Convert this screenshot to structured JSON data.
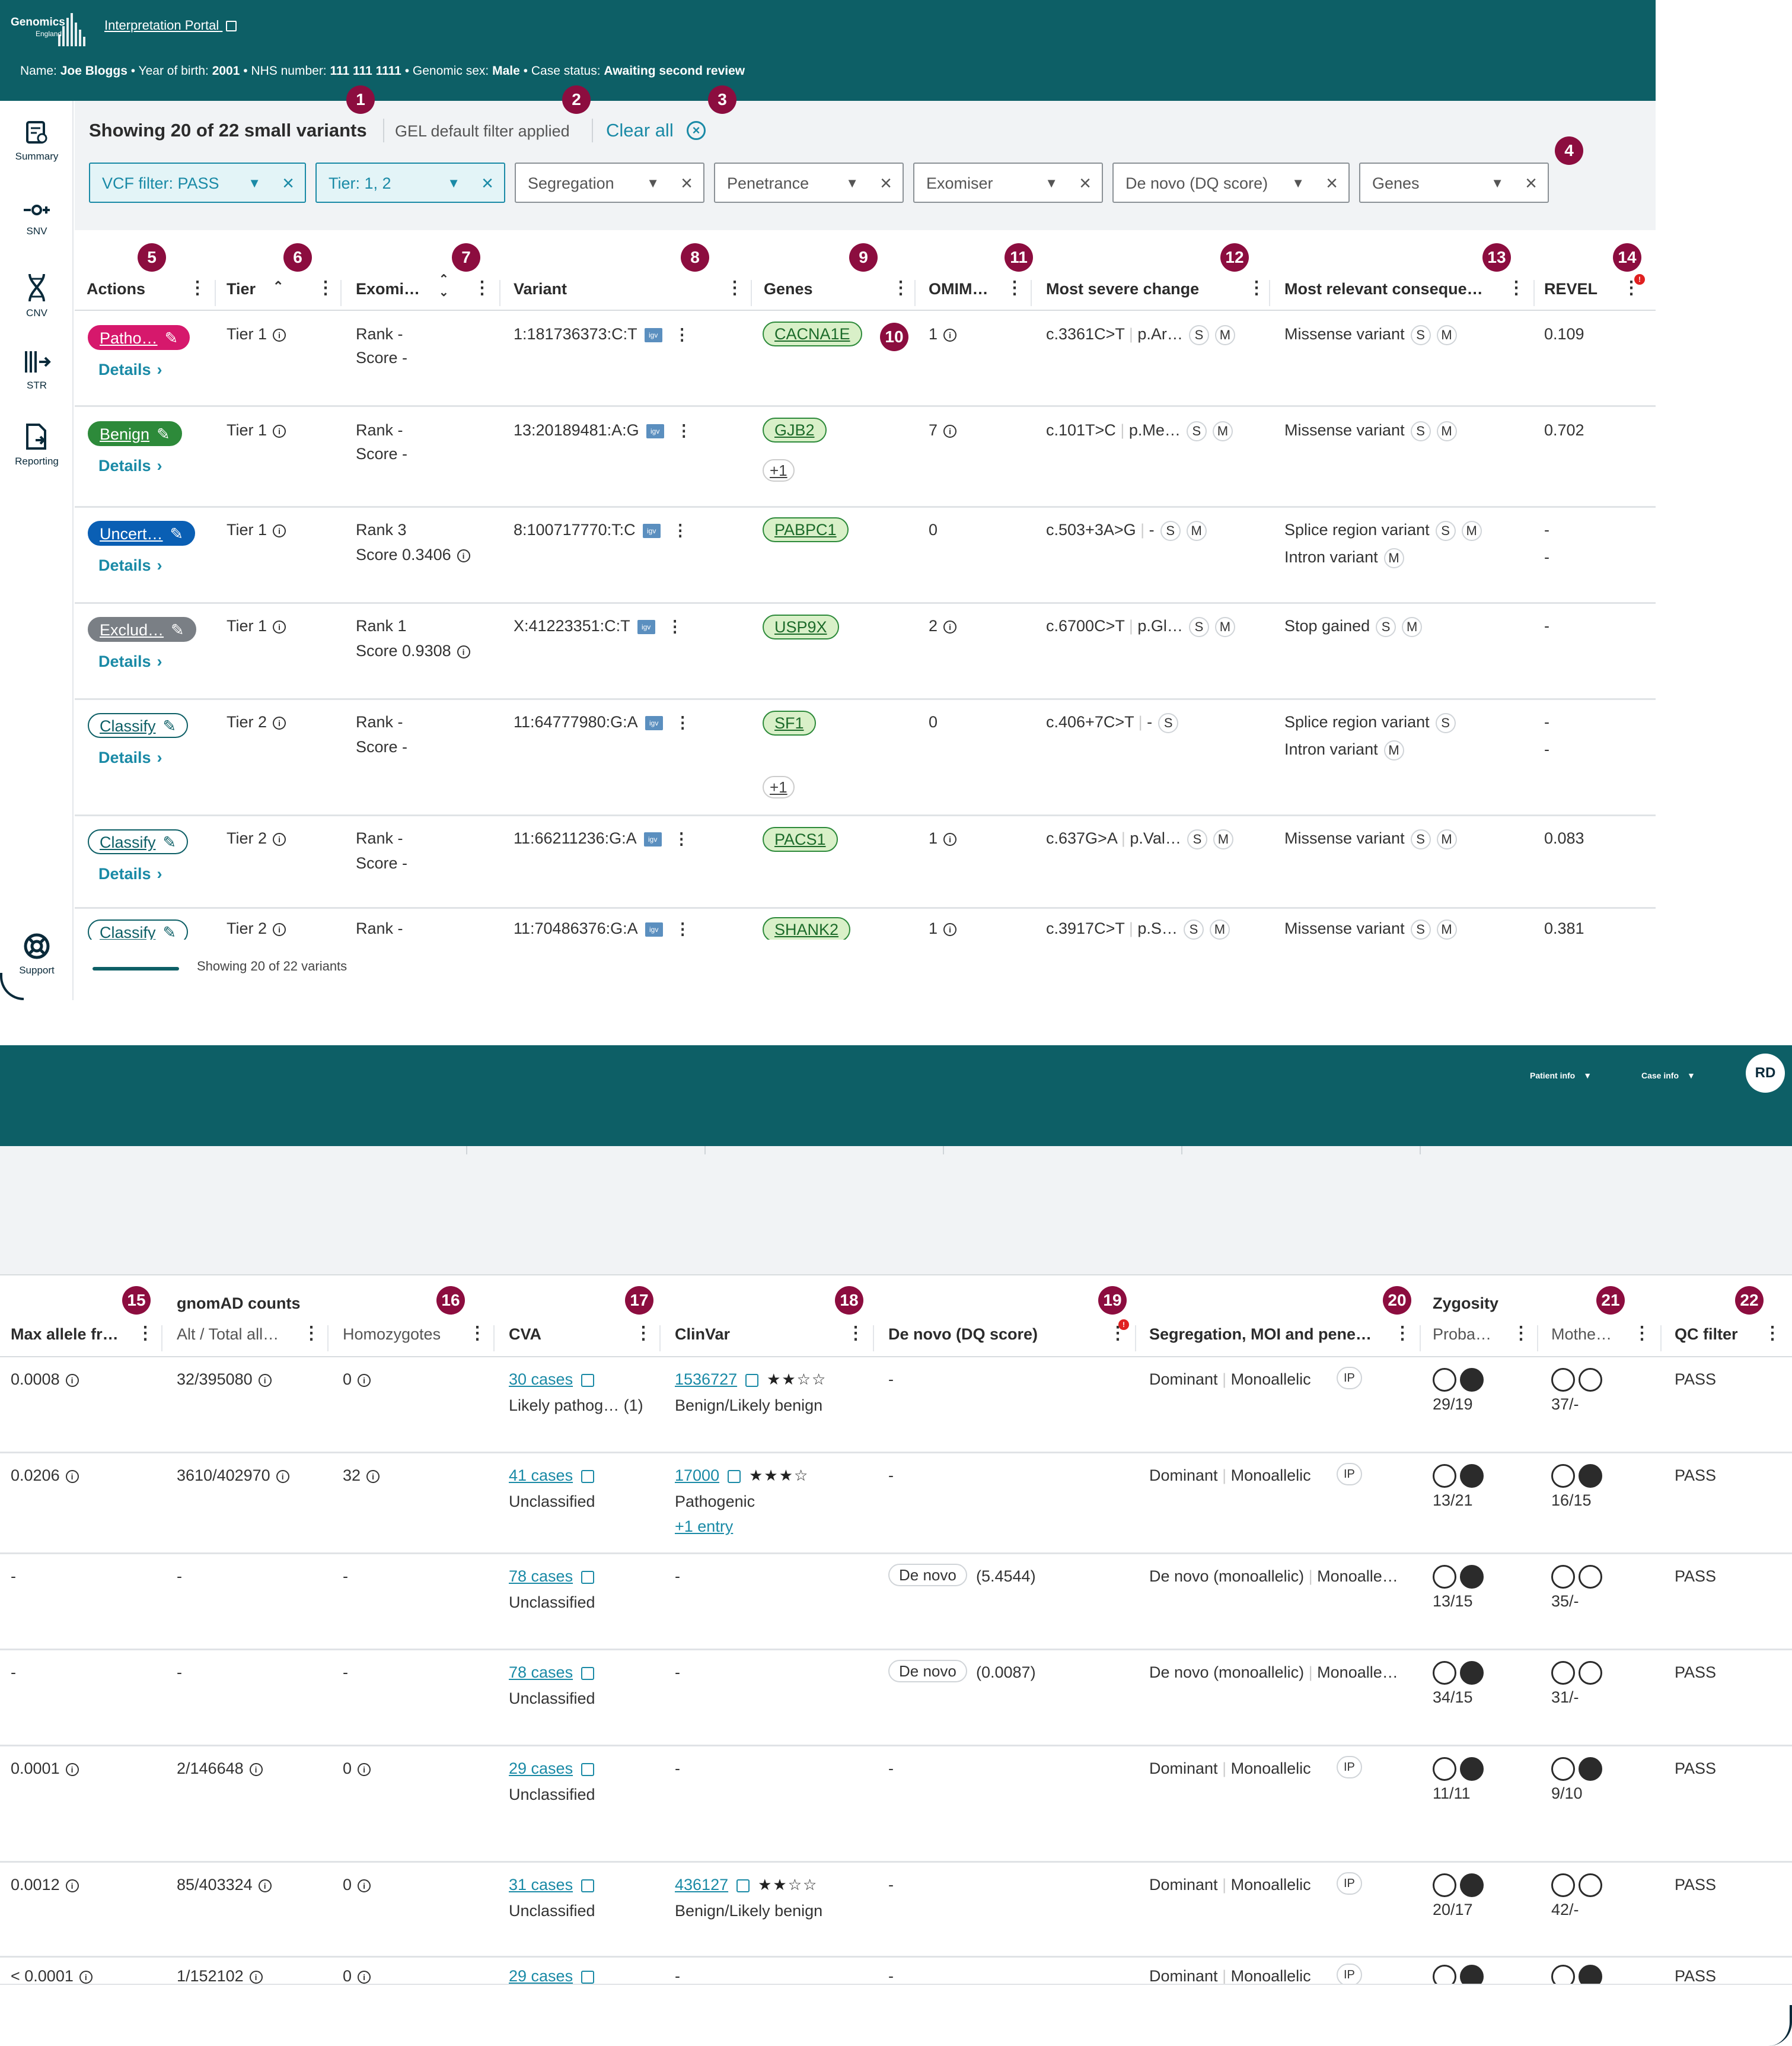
{
  "brand": {
    "line1": "Genomics",
    "line2": "England"
  },
  "header": {
    "portal_link": "Interpretation Portal",
    "name_label": "Name:",
    "name": "Joe Bloggs",
    "yob_label": "• Year of birth:",
    "yob": "2001",
    "nhs_label": "• NHS number:",
    "nhs": "111 111 1111",
    "sex_label": "• Genomic sex:",
    "sex": "Male",
    "status_label": "• Case status:",
    "status": "Awaiting second review"
  },
  "sidebar": {
    "items": [
      {
        "label": "Summary"
      },
      {
        "label": "SNV"
      },
      {
        "label": "CNV"
      },
      {
        "label": "STR"
      },
      {
        "label": "Reporting"
      }
    ],
    "support": "Support"
  },
  "toolbar": {
    "title": "Showing 20 of 22 small variants",
    "default_filter": "GEL default filter applied",
    "clear_all": "Clear all"
  },
  "filters": [
    {
      "label": "VCF filter: PASS",
      "active": true
    },
    {
      "label": "Tier: 1, 2",
      "active": true
    },
    {
      "label": "Segregation",
      "active": false
    },
    {
      "label": "Penetrance",
      "active": false
    },
    {
      "label": "Exomiser",
      "active": false
    },
    {
      "label": "De novo (DQ score)",
      "active": false
    },
    {
      "label": "Genes",
      "active": false
    }
  ],
  "columns": [
    "Actions",
    "Tier",
    "Exomi…",
    "Variant",
    "Genes",
    "OMIM…",
    "Most severe change",
    "Most relevant conseque…",
    "REVEL"
  ],
  "badges": [
    "1",
    "2",
    "3",
    "4",
    "5",
    "6",
    "7",
    "8",
    "9",
    "10",
    "11",
    "12",
    "13",
    "14",
    "15",
    "16",
    "17",
    "18",
    "19",
    "20",
    "21",
    "22"
  ],
  "rows": [
    {
      "action": "Patho…",
      "action_type": "path",
      "details": "Details",
      "tier": "Tier 1",
      "rank": "Rank -",
      "score": "Score -",
      "variant": "1:181736373:C:T",
      "gene": "CACNA1E",
      "gene_extra": "",
      "omim": "1",
      "change": "c.3361C>T",
      "protein": "p.Ar…",
      "cons1": "Missense variant",
      "cons2": "",
      "revel": "0.109",
      "revel2": ""
    },
    {
      "action": "Benign",
      "action_type": "ben",
      "details": "Details",
      "tier": "Tier 1",
      "rank": "Rank -",
      "score": "Score -",
      "variant": "13:20189481:A:G",
      "gene": "GJB2",
      "gene_extra": "+1",
      "omim": "7",
      "change": "c.101T>C",
      "protein": "p.Me…",
      "cons1": "Missense variant",
      "cons2": "",
      "revel": "0.702",
      "revel2": ""
    },
    {
      "action": "Uncert…",
      "action_type": "unc",
      "details": "Details",
      "tier": "Tier 1",
      "rank": "Rank 3",
      "score": "Score 0.3406",
      "variant": "8:100717770:T:C",
      "gene": "PABPC1",
      "gene_extra": "",
      "omim": "0",
      "change": "c.503+3A>G",
      "protein": "-",
      "cons1": "Splice region variant",
      "cons2": "Intron variant",
      "revel": "-",
      "revel2": "-"
    },
    {
      "action": "Exclud…",
      "action_type": "exc",
      "details": "Details",
      "tier": "Tier 1",
      "rank": "Rank 1",
      "score": "Score 0.9308",
      "variant": "X:41223351:C:T",
      "gene": "USP9X",
      "gene_extra": "",
      "omim": "2",
      "change": "c.6700C>T",
      "protein": "p.Gl…",
      "cons1": "Stop gained",
      "cons2": "",
      "revel": "-",
      "revel2": ""
    },
    {
      "action": "Classify",
      "action_type": "cls",
      "details": "Details",
      "tier": "Tier 2",
      "rank": "Rank -",
      "score": "Score -",
      "variant": "11:64777980:G:A",
      "gene": "SF1",
      "gene_extra": "+1",
      "omim": "0",
      "change": "c.406+7C>T",
      "protein": "-",
      "cons1": "Splice region variant",
      "cons2": "Intron variant",
      "revel": "-",
      "revel2": "-"
    },
    {
      "action": "Classify",
      "action_type": "cls",
      "details": "Details",
      "tier": "Tier 2",
      "rank": "Rank -",
      "score": "Score -",
      "variant": "11:66211236:G:A",
      "gene": "PACS1",
      "gene_extra": "",
      "omim": "1",
      "change": "c.637G>A",
      "protein": "p.Val…",
      "cons1": "Missense variant",
      "cons2": "",
      "revel": "0.083",
      "revel2": ""
    },
    {
      "action": "Classify",
      "action_type": "cls",
      "details": "",
      "tier": "Tier 2",
      "rank": "Rank -",
      "score": "",
      "variant": "11:70486376:G:A",
      "gene": "SHANK2",
      "gene_extra": "",
      "omim": "1",
      "change": "c.3917C>T",
      "protein": "p.S…",
      "cons1": "Missense variant",
      "cons2": "",
      "revel": "0.381",
      "revel2": ""
    }
  ],
  "footer": {
    "text": "Showing 20 of 22 variants"
  },
  "header2": {
    "patient_info": "Patient info",
    "case_info": "Case info",
    "avatar": "RD"
  },
  "columns2": {
    "group_gnomad": "gnomAD counts",
    "group_zygosity": "Zygosity",
    "max_af": "Max allele fr…",
    "alt_total": "Alt / Total all…",
    "homozygotes": "Homozygotes",
    "cva": "CVA",
    "clinvar": "ClinVar",
    "denovo": "De novo (DQ score)",
    "segregation": "Segregation, MOI and pene…",
    "proband": "Proba…",
    "mother": "Mothe…",
    "qc": "QC filter"
  },
  "rows2": [
    {
      "maf": "0.0008",
      "alt": "32/395080",
      "hom": "0",
      "cva_link": "30 cases",
      "cva_text": "Likely pathog…  (1)",
      "clinvar_id": "1536727",
      "clinvar_stars": "★★☆☆",
      "clinvar_text": "Benign/Likely benign",
      "clinvar_more": "",
      "denovo_chip": "",
      "denovo_score": "-",
      "seg1": "Dominant",
      "seg2": "Monoallelic",
      "seg_chip": "IP",
      "pro": "29/19",
      "pro_fill": [
        false,
        true
      ],
      "mom": "37/-",
      "mom_fill": [
        false,
        false
      ],
      "qc": "PASS"
    },
    {
      "maf": "0.0206",
      "alt": "3610/402970",
      "hom": "32",
      "cva_link": "41 cases",
      "cva_text": "Unclassified",
      "clinvar_id": "17000",
      "clinvar_stars": "★★★☆",
      "clinvar_text": "Pathogenic",
      "clinvar_more": "+1 entry",
      "denovo_chip": "",
      "denovo_score": "-",
      "seg1": "Dominant",
      "seg2": "Monoallelic",
      "seg_chip": "IP",
      "pro": "13/21",
      "pro_fill": [
        false,
        true
      ],
      "mom": "16/15",
      "mom_fill": [
        false,
        true
      ],
      "qc": "PASS"
    },
    {
      "maf": "-",
      "alt": "-",
      "hom": "-",
      "cva_link": "78 cases",
      "cva_text": "Unclassified",
      "clinvar_id": "",
      "clinvar_stars": "",
      "clinvar_text": "-",
      "clinvar_more": "",
      "denovo_chip": "De novo",
      "denovo_score": "(5.4544)",
      "seg1": "De novo (monoallelic)",
      "seg2": "Monoalle…",
      "seg_chip": "",
      "pro": "13/15",
      "pro_fill": [
        false,
        true
      ],
      "mom": "35/-",
      "mom_fill": [
        false,
        false
      ],
      "qc": "PASS"
    },
    {
      "maf": "-",
      "alt": "-",
      "hom": "-",
      "cva_link": "78 cases",
      "cva_text": "Unclassified",
      "clinvar_id": "",
      "clinvar_stars": "",
      "clinvar_text": "-",
      "clinvar_more": "",
      "denovo_chip": "De novo",
      "denovo_score": "(0.0087)",
      "seg1": "De novo (monoallelic)",
      "seg2": "Monoalle…",
      "seg_chip": "",
      "pro": "34/15",
      "pro_fill": [
        false,
        true
      ],
      "mom": "31/-",
      "mom_fill": [
        false,
        false
      ],
      "qc": "PASS"
    },
    {
      "maf": "0.0001",
      "alt": "2/146648",
      "hom": "0",
      "cva_link": "29 cases",
      "cva_text": "Unclassified",
      "clinvar_id": "",
      "clinvar_stars": "",
      "clinvar_text": "-",
      "clinvar_more": "",
      "denovo_chip": "",
      "denovo_score": "-",
      "seg1": "Dominant",
      "seg2": "Monoallelic",
      "seg_chip": "IP",
      "pro": "11/11",
      "pro_fill": [
        false,
        true
      ],
      "mom": "9/10",
      "mom_fill": [
        false,
        true
      ],
      "qc": "PASS"
    },
    {
      "maf": "0.0012",
      "alt": "85/403324",
      "hom": "0",
      "cva_link": "31 cases",
      "cva_text": "Unclassified",
      "clinvar_id": "436127",
      "clinvar_stars": "★★☆☆",
      "clinvar_text": "Benign/Likely benign",
      "clinvar_more": "",
      "denovo_chip": "",
      "denovo_score": "-",
      "seg1": "Dominant",
      "seg2": "Monoallelic",
      "seg_chip": "IP",
      "pro": "20/17",
      "pro_fill": [
        false,
        true
      ],
      "mom": "42/-",
      "mom_fill": [
        false,
        false
      ],
      "qc": "PASS"
    },
    {
      "maf": "< 0.0001",
      "alt": "1/152102",
      "hom": "0",
      "cva_link": "29 cases",
      "cva_text": "",
      "clinvar_id": "",
      "clinvar_stars": "",
      "clinvar_text": "-",
      "clinvar_more": "",
      "denovo_chip": "",
      "denovo_score": "-",
      "seg1": "Dominant",
      "seg2": "Monoallelic",
      "seg_chip": "IP",
      "pro": "",
      "pro_fill": [
        false,
        true
      ],
      "mom": "",
      "mom_fill": [
        false,
        true
      ],
      "qc": "PASS"
    }
  ],
  "colors": {
    "brand": "#0d5f66",
    "link": "#1a8aa6",
    "pathogenic": "#d6186c",
    "benign": "#2d8a3a",
    "uncertain": "#0a5fb4",
    "excluded": "#7a7f85",
    "marker": "#8c0d3f"
  }
}
